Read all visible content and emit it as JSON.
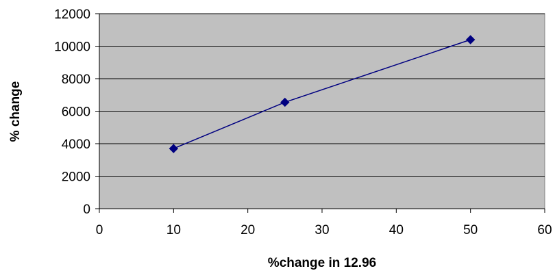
{
  "chart_data": {
    "type": "scatter",
    "title": "",
    "xlabel": "%change in 12.96",
    "ylabel": "% change",
    "xlim": [
      0,
      60
    ],
    "ylim": [
      0,
      12000
    ],
    "x_ticks": [
      0,
      10,
      20,
      30,
      40,
      50,
      60
    ],
    "y_ticks": [
      0,
      2000,
      4000,
      6000,
      8000,
      10000,
      12000
    ],
    "grid": "horizontal",
    "legend": "none",
    "plot_background": "#c0c0c0",
    "series": [
      {
        "color": "#000080",
        "marker": "diamond",
        "line": true,
        "points": [
          {
            "x": 10,
            "y": 3700
          },
          {
            "x": 25,
            "y": 6550
          },
          {
            "x": 50,
            "y": 10400
          }
        ]
      }
    ]
  }
}
